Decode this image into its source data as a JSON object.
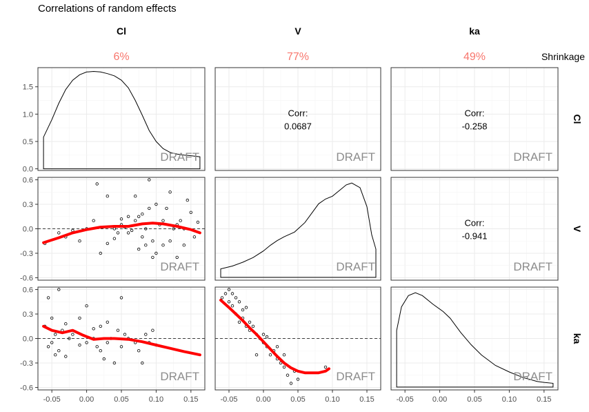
{
  "title": "Correlations of random effects",
  "shrinkage_label": "Shrinkage",
  "variables": [
    {
      "name": "Cl",
      "shrinkage": "6%"
    },
    {
      "name": "V",
      "shrinkage": "77%"
    },
    {
      "name": "ka",
      "shrinkage": "49%"
    }
  ],
  "watermark": "DRAFT",
  "corr_label": "Corr:",
  "colors": {
    "shrinkage": "#F8766D",
    "smooth": "#ff0000"
  },
  "chart_data": {
    "type": "scatter",
    "layout": "pairs-matrix",
    "x_range": [
      -0.07,
      0.17
    ],
    "x_ticks": [
      "-0.05",
      "0.00",
      "0.05",
      "0.10",
      "0.15"
    ],
    "x_tick_values": [
      -0.05,
      0,
      0.05,
      0.1,
      0.15
    ],
    "density_cl_y_range": [
      -0.03,
      1.85
    ],
    "density_cl_ticks": [
      "0.0",
      "0.5",
      "1.0",
      "1.5"
    ],
    "density_cl_tick_values": [
      0,
      0.5,
      1.0,
      1.5
    ],
    "scatter_y_range": [
      -0.63,
      0.63
    ],
    "scatter_y_ticks": [
      "-0.6",
      "-0.3",
      "0.0",
      "0.3",
      "0.6"
    ],
    "scatter_y_tick_values": [
      -0.6,
      -0.3,
      0,
      0.3,
      0.6
    ],
    "correlations": {
      "Cl_V": "0.0687",
      "Cl_ka": "-0.258",
      "V_ka": "-0.941"
    },
    "density_Cl": [
      [
        -0.062,
        0.2
      ],
      [
        -0.062,
        0.58
      ],
      [
        -0.05,
        0.9
      ],
      [
        -0.04,
        1.2
      ],
      [
        -0.03,
        1.45
      ],
      [
        -0.02,
        1.62
      ],
      [
        -0.01,
        1.72
      ],
      [
        0.0,
        1.77
      ],
      [
        0.01,
        1.78
      ],
      [
        0.02,
        1.77
      ],
      [
        0.03,
        1.74
      ],
      [
        0.04,
        1.7
      ],
      [
        0.05,
        1.62
      ],
      [
        0.06,
        1.48
      ],
      [
        0.07,
        1.25
      ],
      [
        0.08,
        0.98
      ],
      [
        0.09,
        0.7
      ],
      [
        0.1,
        0.5
      ],
      [
        0.11,
        0.37
      ],
      [
        0.12,
        0.3
      ],
      [
        0.13,
        0.27
      ],
      [
        0.14,
        0.25
      ],
      [
        0.15,
        0.24
      ],
      [
        0.163,
        0.22
      ],
      [
        0.163,
        0.0
      ],
      [
        -0.062,
        0.0
      ]
    ],
    "density_V": [
      [
        -0.062,
        0.0
      ],
      [
        -0.062,
        0.09
      ],
      [
        -0.045,
        0.12
      ],
      [
        -0.03,
        0.16
      ],
      [
        -0.015,
        0.21
      ],
      [
        0.0,
        0.28
      ],
      [
        0.01,
        0.34
      ],
      [
        0.02,
        0.39
      ],
      [
        0.03,
        0.43
      ],
      [
        0.045,
        0.48
      ],
      [
        0.06,
        0.58
      ],
      [
        0.07,
        0.68
      ],
      [
        0.08,
        0.78
      ],
      [
        0.09,
        0.83
      ],
      [
        0.1,
        0.86
      ],
      [
        0.11,
        0.92
      ],
      [
        0.12,
        0.98
      ],
      [
        0.128,
        1.0
      ],
      [
        0.14,
        0.95
      ],
      [
        0.15,
        0.75
      ],
      [
        0.157,
        0.45
      ],
      [
        0.163,
        0.3
      ],
      [
        0.163,
        0.0
      ]
    ],
    "density_ka": [
      [
        -0.062,
        0.0
      ],
      [
        -0.062,
        0.6
      ],
      [
        -0.055,
        0.85
      ],
      [
        -0.045,
        0.97
      ],
      [
        -0.035,
        1.0
      ],
      [
        -0.025,
        0.97
      ],
      [
        -0.01,
        0.88
      ],
      [
        0.005,
        0.8
      ],
      [
        0.015,
        0.73
      ],
      [
        0.03,
        0.58
      ],
      [
        0.045,
        0.45
      ],
      [
        0.06,
        0.34
      ],
      [
        0.08,
        0.23
      ],
      [
        0.1,
        0.16
      ],
      [
        0.12,
        0.1
      ],
      [
        0.14,
        0.06
      ],
      [
        0.15,
        0.05
      ],
      [
        0.163,
        0.04
      ],
      [
        0.163,
        0.0
      ]
    ],
    "scatter_V_vs_Cl": [
      [
        -0.06,
        -0.18
      ],
      [
        -0.04,
        -0.05
      ],
      [
        -0.03,
        -0.1
      ],
      [
        -0.02,
        -0.02
      ],
      [
        -0.01,
        -0.15
      ],
      [
        0.0,
        0.0
      ],
      [
        0.01,
        0.1
      ],
      [
        0.015,
        0.55
      ],
      [
        0.02,
        -0.3
      ],
      [
        0.03,
        0.4
      ],
      [
        0.04,
        -0.12
      ],
      [
        0.045,
        -0.05
      ],
      [
        0.05,
        0.05
      ],
      [
        0.055,
        0.02
      ],
      [
        0.06,
        0.15
      ],
      [
        0.065,
        -0.02
      ],
      [
        0.07,
        0.4
      ],
      [
        0.075,
        0.15
      ],
      [
        0.08,
        0.18
      ],
      [
        0.085,
        0.0
      ],
      [
        0.09,
        0.6
      ],
      [
        0.09,
        0.25
      ],
      [
        0.095,
        -0.15
      ],
      [
        0.1,
        0.3
      ],
      [
        0.105,
        0.05
      ],
      [
        0.11,
        -0.2
      ],
      [
        0.115,
        0.25
      ],
      [
        0.12,
        0.45
      ],
      [
        0.125,
        0.0
      ],
      [
        0.13,
        -0.35
      ],
      [
        0.135,
        0.1
      ],
      [
        0.14,
        -0.2
      ],
      [
        0.145,
        0.35
      ],
      [
        0.15,
        0.2
      ],
      [
        0.155,
        -0.1
      ],
      [
        0.16,
        0.08
      ],
      [
        0.1,
        -0.3
      ],
      [
        0.08,
        -0.1
      ],
      [
        0.07,
        0.1
      ],
      [
        0.06,
        -0.05
      ],
      [
        0.04,
        0.0
      ],
      [
        0.03,
        -0.18
      ],
      [
        0.12,
        -0.15
      ],
      [
        0.13,
        0.05
      ],
      [
        0.11,
        0.1
      ],
      [
        0.095,
        -0.35
      ],
      [
        0.085,
        -0.2
      ],
      [
        0.075,
        -0.25
      ],
      [
        0.05,
        0.12
      ],
      [
        0.14,
        0.0
      ]
    ],
    "smooth_V_vs_Cl": [
      [
        -0.062,
        -0.17
      ],
      [
        -0.04,
        -0.11
      ],
      [
        -0.02,
        -0.05
      ],
      [
        0.0,
        -0.01
      ],
      [
        0.02,
        0.02
      ],
      [
        0.04,
        0.03
      ],
      [
        0.06,
        0.03
      ],
      [
        0.08,
        0.06
      ],
      [
        0.095,
        0.07
      ],
      [
        0.11,
        0.06
      ],
      [
        0.13,
        0.03
      ],
      [
        0.15,
        -0.01
      ],
      [
        0.163,
        -0.05
      ]
    ],
    "scatter_ka_vs_Cl": [
      [
        -0.06,
        0.15
      ],
      [
        -0.055,
        0.5
      ],
      [
        -0.05,
        0.25
      ],
      [
        -0.05,
        -0.05
      ],
      [
        -0.045,
        0.05
      ],
      [
        -0.04,
        0.6
      ],
      [
        -0.04,
        -0.15
      ],
      [
        -0.035,
        0.1
      ],
      [
        -0.03,
        -0.22
      ],
      [
        -0.025,
        0.0
      ],
      [
        -0.02,
        0.05
      ],
      [
        -0.01,
        0.25
      ],
      [
        0.0,
        0.4
      ],
      [
        0.0,
        -0.05
      ],
      [
        0.01,
        0.12
      ],
      [
        0.015,
        -0.1
      ],
      [
        0.02,
        0.15
      ],
      [
        0.025,
        -0.25
      ],
      [
        0.03,
        -0.05
      ],
      [
        0.035,
        0.0
      ],
      [
        0.04,
        -0.3
      ],
      [
        0.045,
        0.1
      ],
      [
        0.05,
        0.5
      ],
      [
        0.05,
        -0.1
      ],
      [
        0.055,
        0.05
      ],
      [
        0.06,
        0.0
      ],
      [
        0.07,
        -0.05
      ],
      [
        0.075,
        -0.15
      ],
      [
        0.08,
        -0.3
      ],
      [
        0.085,
        0.05
      ],
      [
        0.09,
        -0.05
      ],
      [
        0.095,
        0.1
      ],
      [
        0.1,
        -0.08
      ],
      [
        -0.055,
        -0.1
      ],
      [
        -0.045,
        -0.2
      ],
      [
        -0.03,
        0.18
      ],
      [
        0.02,
        -0.15
      ],
      [
        -0.01,
        -0.08
      ],
      [
        0.01,
        0.0
      ],
      [
        0.03,
        0.2
      ]
    ],
    "smooth_ka_vs_Cl": [
      [
        -0.062,
        0.15
      ],
      [
        -0.05,
        0.1
      ],
      [
        -0.035,
        0.07
      ],
      [
        -0.02,
        0.1
      ],
      [
        -0.005,
        0.04
      ],
      [
        0.01,
        -0.01
      ],
      [
        0.025,
        0.0
      ],
      [
        0.04,
        0.0
      ],
      [
        0.06,
        -0.01
      ],
      [
        0.08,
        -0.04
      ],
      [
        0.1,
        -0.08
      ],
      [
        0.12,
        -0.12
      ],
      [
        0.14,
        -0.16
      ],
      [
        0.163,
        -0.2
      ]
    ],
    "scatter_ka_vs_V": [
      [
        -0.06,
        0.5
      ],
      [
        -0.055,
        0.55
      ],
      [
        -0.05,
        0.45
      ],
      [
        -0.05,
        0.6
      ],
      [
        -0.045,
        0.4
      ],
      [
        -0.04,
        0.5
      ],
      [
        -0.04,
        0.3
      ],
      [
        -0.035,
        0.45
      ],
      [
        -0.03,
        0.35
      ],
      [
        -0.03,
        0.25
      ],
      [
        -0.025,
        0.38
      ],
      [
        -0.02,
        0.2
      ],
      [
        -0.02,
        0.1
      ],
      [
        -0.015,
        0.15
      ],
      [
        -0.01,
        0.05
      ],
      [
        -0.005,
        0.0
      ],
      [
        0.0,
        -0.05
      ],
      [
        0.0,
        0.05
      ],
      [
        0.005,
        -0.1
      ],
      [
        0.01,
        -0.2
      ],
      [
        0.015,
        -0.15
      ],
      [
        0.02,
        -0.25
      ],
      [
        0.025,
        -0.3
      ],
      [
        0.03,
        -0.35
      ],
      [
        0.035,
        -0.45
      ],
      [
        0.04,
        -0.55
      ],
      [
        0.045,
        -0.4
      ],
      [
        0.05,
        -0.5
      ],
      [
        -0.01,
        -0.2
      ],
      [
        0.005,
        0.02
      ],
      [
        -0.045,
        0.55
      ],
      [
        -0.035,
        0.2
      ],
      [
        0.02,
        -0.1
      ],
      [
        0.09,
        -0.35
      ],
      [
        0.03,
        -0.2
      ],
      [
        -0.025,
        0.15
      ]
    ],
    "smooth_ka_vs_V": [
      [
        -0.062,
        0.47
      ],
      [
        -0.05,
        0.38
      ],
      [
        -0.04,
        0.3
      ],
      [
        -0.03,
        0.22
      ],
      [
        -0.02,
        0.13
      ],
      [
        -0.01,
        0.05
      ],
      [
        0.0,
        -0.04
      ],
      [
        0.01,
        -0.13
      ],
      [
        0.02,
        -0.22
      ],
      [
        0.03,
        -0.3
      ],
      [
        0.04,
        -0.36
      ],
      [
        0.05,
        -0.4
      ],
      [
        0.06,
        -0.42
      ],
      [
        0.07,
        -0.42
      ],
      [
        0.08,
        -0.42
      ],
      [
        0.09,
        -0.4
      ],
      [
        0.095,
        -0.37
      ]
    ]
  }
}
